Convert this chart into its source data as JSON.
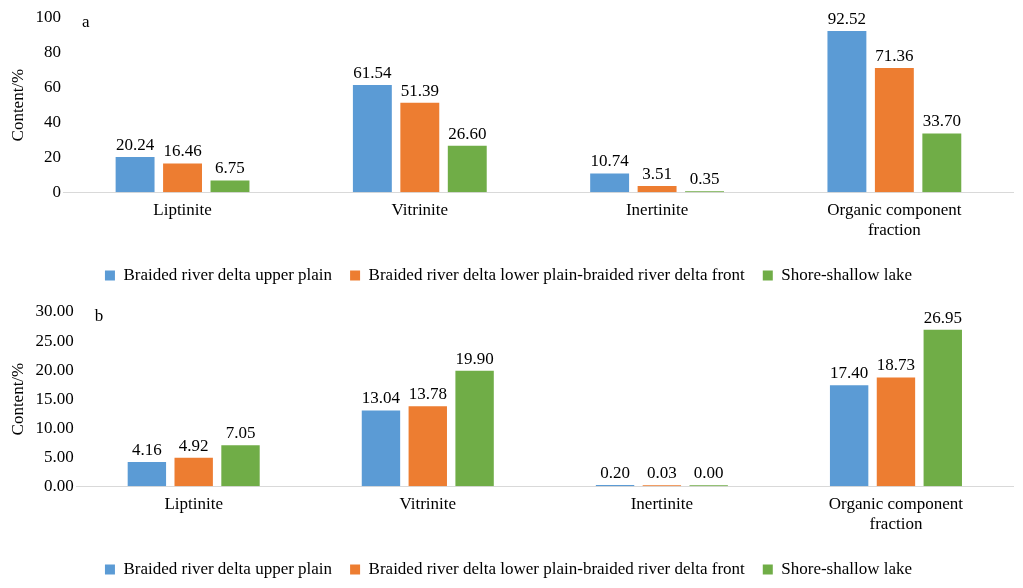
{
  "chart_data": [
    {
      "type": "bar",
      "categories": [
        "Liptinite",
        "Vitrinite",
        "Inertinite",
        "Organic component fraction"
      ],
      "ylabel": "Content/%",
      "annotations": [
        "a"
      ],
      "ylim": [
        0,
        100
      ],
      "yticks": [
        0,
        20,
        40,
        60,
        80,
        100
      ],
      "grid": false,
      "legend": "bottom",
      "series": [
        {
          "name": "Braided river delta upper plain",
          "color": "#5b9bd5",
          "values": [
            20.24,
            61.54,
            10.74,
            92.52
          ],
          "value_labels": [
            "20.24",
            "61.54",
            "10.74",
            "92.52"
          ]
        },
        {
          "name": "Braided river delta lower plain-braided river delta front",
          "color": "#ed7d31",
          "values": [
            16.46,
            51.39,
            3.51,
            71.36
          ],
          "value_labels": [
            "16.46",
            "51.39",
            "3.51",
            "71.36"
          ]
        },
        {
          "name": "Shore-shallow lake",
          "color": "#70ad47",
          "values": [
            6.75,
            26.6,
            0.35,
            33.7
          ],
          "value_labels": [
            "6.75",
            "26.60",
            "0.35",
            "33.70"
          ]
        }
      ]
    },
    {
      "type": "bar",
      "categories": [
        "Liptinite",
        "Vitrinite",
        "Inertinite",
        "Organic component fraction"
      ],
      "ylabel": "Content/%",
      "annotations": [
        "b"
      ],
      "ylim": [
        0,
        30
      ],
      "yticks": [
        {
          "value": 0,
          "label": "0.00"
        },
        {
          "value": 5,
          "label": "5.00"
        },
        {
          "value": 10,
          "label": "10.00"
        },
        {
          "value": 15,
          "label": "15.00"
        },
        {
          "value": 20,
          "label": "20.00"
        },
        {
          "value": 25,
          "label": "25.00"
        },
        {
          "value": 30,
          "label": "30.00"
        }
      ],
      "grid": false,
      "legend": "bottom",
      "series": [
        {
          "name": "Braided river delta upper plain",
          "color": "#5b9bd5",
          "values": [
            4.16,
            13.04,
            0.2,
            17.4
          ],
          "value_labels": [
            "4.16",
            "13.04",
            "0.20",
            "17.40"
          ]
        },
        {
          "name": "Braided river delta lower plain-braided river delta front",
          "color": "#ed7d31",
          "values": [
            4.92,
            13.78,
            0.03,
            18.73
          ],
          "value_labels": [
            "4.92",
            "13.78",
            "0.03",
            "18.73"
          ]
        },
        {
          "name": "Shore-shallow lake",
          "color": "#70ad47",
          "values": [
            7.05,
            19.9,
            0,
            26.95
          ],
          "value_labels": [
            "7.05",
            "19.90",
            "0.00",
            "26.95"
          ]
        }
      ]
    }
  ]
}
